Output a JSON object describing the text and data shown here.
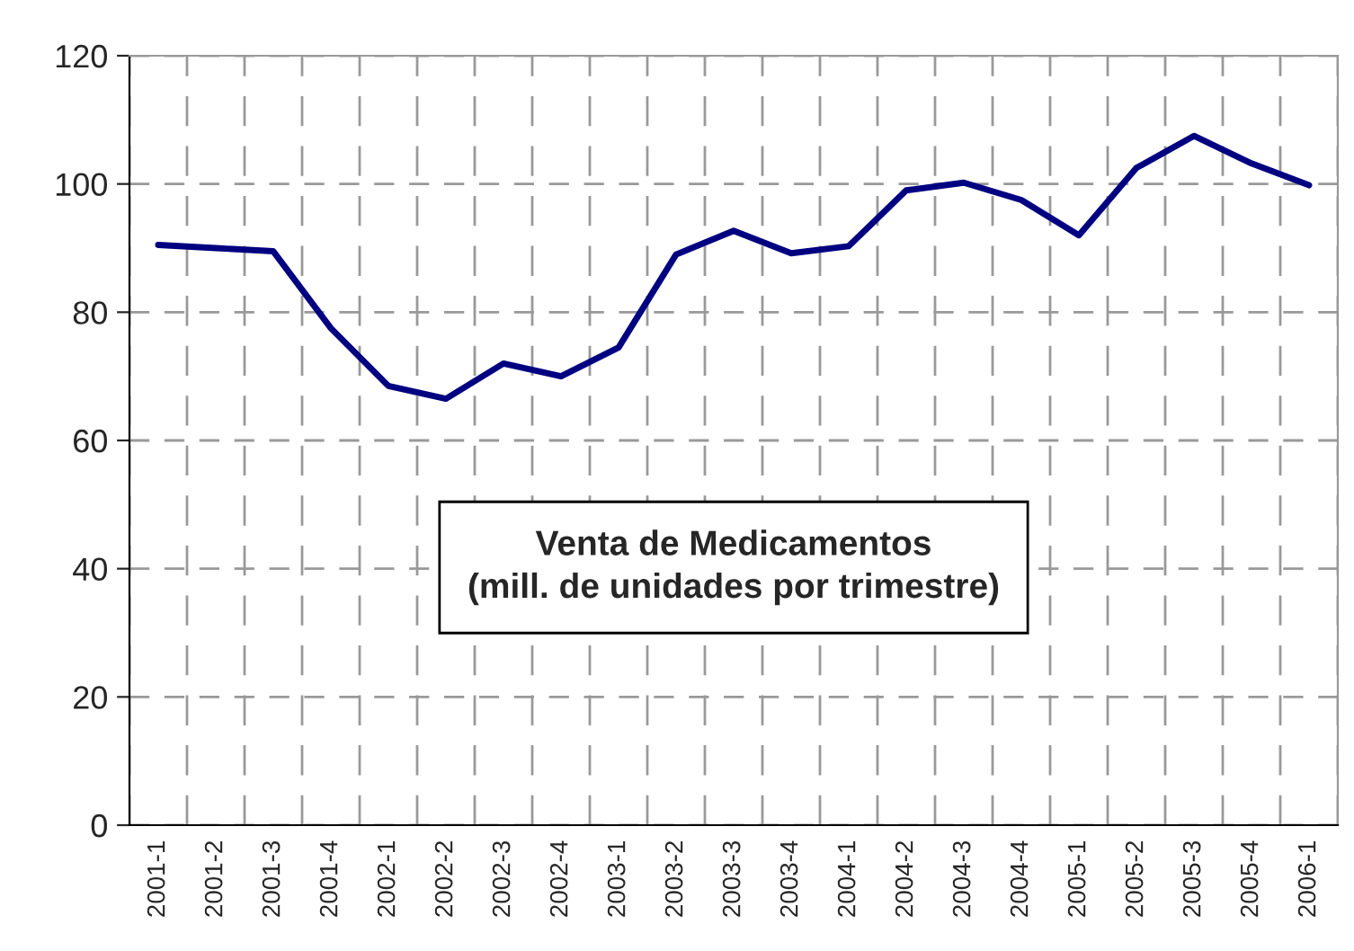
{
  "chart_data": {
    "type": "line",
    "title": "Venta de Medicamentos\n(mill. de unidades por trimestre)",
    "categories": [
      "2001-1",
      "2001-2",
      "2001-3",
      "2001-4",
      "2002-1",
      "2002-2",
      "2002-3",
      "2002-4",
      "2003-1",
      "2003-2",
      "2003-3",
      "2003-4",
      "2004-1",
      "2004-2",
      "2004-3",
      "2004-4",
      "2005-1",
      "2005-2",
      "2005-3",
      "2005-4",
      "2006-1"
    ],
    "series": [
      {
        "color": "#000080",
        "values": [
          90.5,
          90.0,
          89.5,
          77.5,
          68.5,
          66.5,
          72.0,
          70.0,
          74.5,
          89.0,
          92.7,
          89.2,
          90.3,
          99.0,
          100.2,
          97.5,
          92.0,
          102.5,
          107.5,
          103.2,
          99.8
        ]
      }
    ],
    "ylim": [
      0,
      120
    ],
    "yticks": [
      0,
      20,
      40,
      60,
      80,
      100,
      120
    ],
    "grid": true,
    "legend": false,
    "marker": "none",
    "line_style": "solid"
  }
}
